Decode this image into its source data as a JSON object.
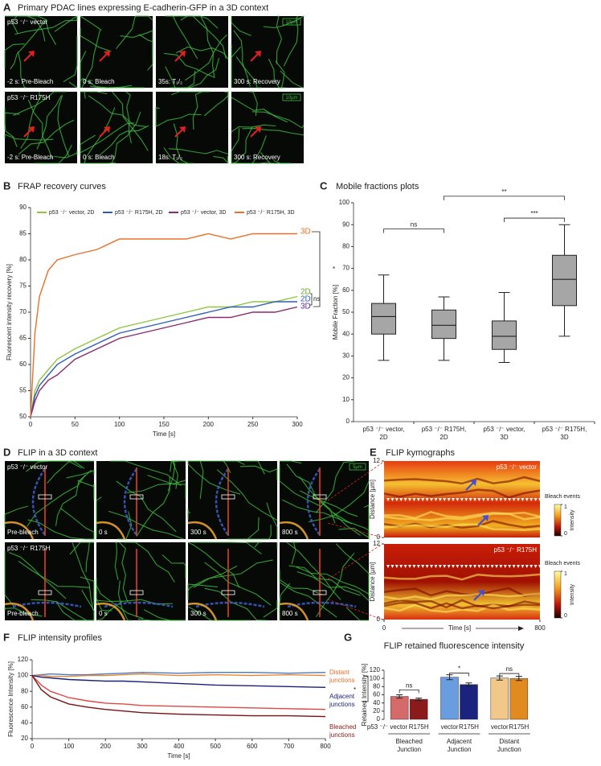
{
  "panel_labels": [
    "A",
    "B",
    "C",
    "D",
    "E",
    "F",
    "G"
  ],
  "panel_a": {
    "title": "Primary PDAC lines expressing E-cadherin-GFP in a 3D context",
    "rows": [
      {
        "label": "p53 ⁻/⁻ vector",
        "scale": "10µm",
        "captions": [
          "-2 s: Pre-Bleach",
          "0 s: Bleach",
          "35s: T₁/₂",
          "300 s: Recovery"
        ]
      },
      {
        "label": "p53 ⁻/⁻ R175H",
        "scale": "10µm",
        "captions": [
          "-2 s: Pre-Bleach",
          "0 s: Bleach",
          "18s: T₁/₂",
          "300 s: Recovery"
        ]
      }
    ]
  },
  "panel_d": {
    "title": "FLIP in a 3D context",
    "scale": "5µm",
    "rows": [
      {
        "label": "p53 ⁻/⁻ vector",
        "captions": [
          "Pre-bleach",
          "0 s",
          "300 s",
          "800 s"
        ]
      },
      {
        "label": "p53 ⁻/⁻ R175H",
        "captions": [
          "Pre-bleach",
          "0 s",
          "300 s",
          "800 s"
        ]
      }
    ]
  },
  "panel_e": {
    "title": "FLIP kymographs",
    "y_label": "Distance [µm]",
    "yticks": [
      0,
      12
    ],
    "x_label": "Time [s]",
    "xticks": [
      0,
      800
    ],
    "bleach_label": "Bleach events",
    "colorbar_label": "Intensity",
    "colorbar_ticks": [
      0,
      1
    ],
    "rows": [
      {
        "label": "p53 ⁻/⁻ vector"
      },
      {
        "label": "p53 ⁻/⁻ R175H"
      }
    ]
  },
  "chart_data": [
    {
      "type": "line",
      "title": "FRAP recovery curves",
      "x_label": "Time [s]",
      "y_label": "Fluorescent intensity recovery [%]",
      "xlim": [
        0,
        300
      ],
      "xticks": [
        0,
        50,
        100,
        150,
        200,
        250,
        300
      ],
      "ylim": [
        50,
        90
      ],
      "yticks": [
        50,
        55,
        60,
        65,
        70,
        75,
        80,
        85,
        90
      ],
      "x": [
        0,
        5,
        10,
        20,
        30,
        50,
        75,
        100,
        125,
        150,
        175,
        200,
        225,
        250,
        275,
        300
      ],
      "series": [
        {
          "name": "p53 ⁻/⁻ vector, 2D",
          "color": "#8dc63f",
          "values": [
            50,
            55,
            57,
            59,
            61,
            63,
            65,
            67,
            68,
            69,
            70,
            71,
            71,
            72,
            72,
            73
          ]
        },
        {
          "name": "p53 ⁻/⁻ R175H, 2D",
          "color": "#2e5cb8",
          "values": [
            50,
            54,
            56,
            58,
            60,
            62,
            64,
            66,
            67,
            68,
            69,
            70,
            71,
            71,
            72,
            72
          ]
        },
        {
          "name": "p53 ⁻/⁻ vector, 3D",
          "color": "#8b2a6e",
          "values": [
            50,
            53,
            55,
            57,
            58,
            61,
            63,
            65,
            66,
            67,
            68,
            69,
            69,
            70,
            70,
            71
          ]
        },
        {
          "name": "p53 ⁻/⁻ R175H, 3D",
          "color": "#e8702a",
          "values": [
            50,
            66,
            73,
            78,
            80,
            81,
            82,
            84,
            84,
            84,
            84,
            85,
            84,
            85,
            85,
            85
          ]
        }
      ],
      "annotations": [
        {
          "text": "3D",
          "color": "#e8702a"
        },
        {
          "text": "2D",
          "color": "#6aa82a"
        },
        {
          "text": "2D",
          "color": "#2e5cb8"
        },
        {
          "text": "3D",
          "color": "#5a2a90"
        },
        {
          "text": "ns"
        },
        {
          "text": "*"
        }
      ]
    },
    {
      "type": "box",
      "title": "Mobile fractions plots",
      "y_label": "Mobile Fraction [%]",
      "ylim": [
        0,
        100
      ],
      "yticks": [
        0,
        10,
        20,
        30,
        40,
        50,
        60,
        70,
        80,
        90,
        100
      ],
      "color": "#a6a6a6",
      "categories": [
        [
          "p53 ⁻/⁻ vector,",
          "2D"
        ],
        [
          "p53 ⁻/⁻ R175H,",
          "2D"
        ],
        [
          "p53 ⁻/⁻ vector,",
          "3D"
        ],
        [
          "p53 ⁻/⁻ R175H,",
          "3D"
        ]
      ],
      "boxes": [
        {
          "min": 28,
          "q1": 40,
          "median": 48,
          "q3": 54,
          "max": 67
        },
        {
          "min": 28,
          "q1": 38,
          "median": 44,
          "q3": 51,
          "max": 57
        },
        {
          "min": 27,
          "q1": 33,
          "median": 39,
          "q3": 46,
          "max": 59
        },
        {
          "min": 39,
          "q1": 53,
          "median": 65,
          "q3": 76,
          "max": 90
        }
      ],
      "annotations": [
        {
          "text": "ns"
        },
        {
          "text": "**"
        },
        {
          "text": "***"
        }
      ]
    },
    {
      "type": "line",
      "title": "FLIP intensity profiles",
      "x_label": "Time [s]",
      "y_label": "Fluorescence Intensity [%]",
      "xlim": [
        0,
        800
      ],
      "xticks": [
        0,
        100,
        200,
        300,
        400,
        500,
        600,
        700,
        800
      ],
      "ylim": [
        20,
        120
      ],
      "yticks": [
        20,
        40,
        60,
        80,
        100,
        120
      ],
      "x": [
        0,
        25,
        50,
        100,
        150,
        200,
        250,
        300,
        400,
        500,
        600,
        700,
        800
      ],
      "series": [
        {
          "color": "#4a78c8",
          "values": [
            100,
            101,
            102,
            101,
            101,
            102,
            103,
            104,
            103,
            104,
            104,
            103,
            104
          ]
        },
        {
          "color": "#e8872a",
          "values": [
            100,
            100,
            99,
            99,
            100,
            100,
            101,
            102,
            100,
            101,
            100,
            101,
            100
          ]
        },
        {
          "color": "#1a1f7a",
          "values": [
            100,
            98,
            97,
            95,
            94,
            93,
            93,
            92,
            90,
            88,
            87,
            86,
            85
          ]
        },
        {
          "color": "#e04848",
          "values": [
            100,
            88,
            80,
            72,
            68,
            65,
            64,
            62,
            61,
            60,
            59,
            58,
            57
          ]
        },
        {
          "color": "#7a1010",
          "values": [
            100,
            82,
            73,
            64,
            60,
            57,
            55,
            53,
            51,
            50,
            49,
            49,
            48
          ]
        }
      ],
      "annotations": [
        {
          "lines": [
            "Distant",
            "junctions"
          ],
          "color": "#e8702a"
        },
        {
          "lines": [
            "*"
          ]
        },
        {
          "lines": [
            "Adjacent",
            "junctions"
          ],
          "color": "#1a1f7a"
        },
        {
          "lines": [
            "Bleached",
            "junctions"
          ],
          "color": "#8b1a1a"
        }
      ]
    },
    {
      "type": "bar",
      "title": "FLIP retained fluorescence intensity",
      "y_label": "Retained Intensity [%]",
      "ylim": [
        0,
        120
      ],
      "yticks": [
        0,
        20,
        40,
        60,
        80,
        100,
        120
      ],
      "categories": [
        "p53 ⁻/⁻ vector",
        "R175H",
        "vector",
        "R175H",
        "vector",
        "R175H"
      ],
      "values": [
        56,
        49,
        103,
        85,
        101,
        100
      ],
      "errors": [
        4,
        3,
        6,
        4,
        5,
        5
      ],
      "colors": [
        "#d46a6a",
        "#8b1a1a",
        "#6a9ce0",
        "#1a237e",
        "#f2c88a",
        "#e08a20"
      ],
      "groups": [
        [
          "Bleached",
          "Junction"
        ],
        [
          "Adjacent",
          "Junction"
        ],
        [
          "Distant",
          "Junction"
        ]
      ],
      "annotations": [
        {
          "text": "ns"
        },
        {
          "text": "*"
        },
        {
          "text": "ns"
        }
      ]
    }
  ]
}
